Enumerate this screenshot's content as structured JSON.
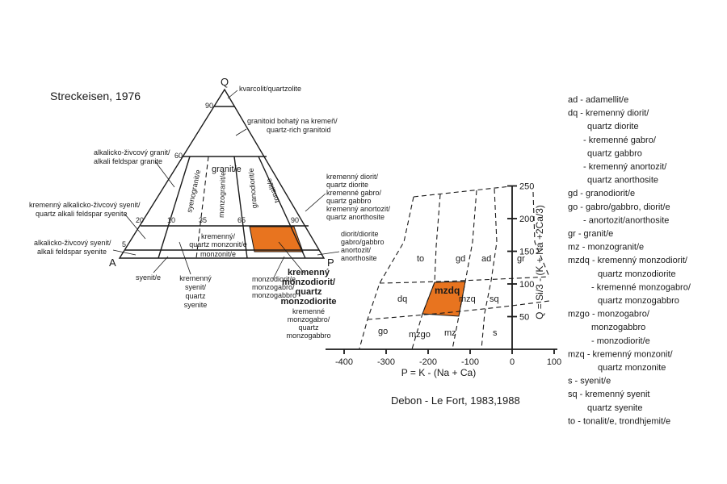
{
  "streckeisen": {
    "title": "Streckeisen, 1976",
    "vertices": {
      "q": "Q",
      "a": "A",
      "p": "P"
    },
    "tick_labels": {
      "q90": "90",
      "q60": "60",
      "q20": "20",
      "q5": "5",
      "p10": "10",
      "p35": "35",
      "p65": "65",
      "p90": "90"
    },
    "field_labels": {
      "granite": "granit/e",
      "syenogranite": "syenogranit/e",
      "monzogranite": "monzogranit/e",
      "granodiorite": "granodiorit/e",
      "tonalite": "tonalit/e",
      "qmonzonite_1": "kremenný/",
      "qmonzonite_2": "quartz monzonit/e",
      "monzonite": "monzonit/e"
    },
    "callouts": {
      "quartzolite": "kvarcolit/quartzolite",
      "qrich_1": "granitoid bohatý na kremeň/",
      "qrich_2": "quartz-rich granitoid",
      "akfg_1": "alkalicko-živcový granit/",
      "akfg_2": "alkali feldspar granite",
      "qakfs_1": "kremenný alkalicko-živcový syenit/",
      "qakfs_2": "quartz alkali feldspar syenite",
      "akfs_1": "alkalicko-živcový syenit/",
      "akfs_2": "alkali feldspar syenite",
      "syenite": "syenit/e",
      "qsyenite": [
        "kremenný",
        "syenit/",
        "quartz",
        "syenite"
      ],
      "qdiorite": [
        "kremenný diorit/",
        "quartz diorite",
        "kremenné gabro/",
        "quartz gabbro",
        "kremenný anortozit/",
        "quartz anorthosite"
      ],
      "diorite": [
        "diorit/diorite",
        "gabro/gabbro",
        "anortozit/",
        "anorthosite"
      ],
      "monzodiorite": [
        "monzodiorit/e",
        "monzogabro/",
        "monzogabbro"
      ],
      "qmonzodiorite_bold": [
        "kremenný",
        "monzodiorit/",
        "quartz",
        "monzodiorite"
      ],
      "qmonzodiorite_rest": [
        "kremenné",
        "monzogabro/",
        "quartz",
        "monzogabbro"
      ]
    }
  },
  "debon": {
    "title": "Debon - Le Fort, 1983,1988",
    "x_axis_label": "P = K - (Na + Ca)",
    "y_axis_label": "Q = Si/3 - (K + Na +2Ca/3)",
    "x_ticks": [
      {
        "value": -400,
        "label": "-400"
      },
      {
        "value": -300,
        "label": "-300"
      },
      {
        "value": -200,
        "label": "-200"
      },
      {
        "value": -100,
        "label": "-100"
      },
      {
        "value": 0,
        "label": "0"
      },
      {
        "value": 100,
        "label": "100"
      }
    ],
    "y_ticks": [
      {
        "value": 50,
        "label": "50"
      },
      {
        "value": 100,
        "label": "100"
      },
      {
        "value": 150,
        "label": "150"
      },
      {
        "value": 200,
        "label": "200"
      },
      {
        "value": 250,
        "label": "250"
      }
    ],
    "field_labels": {
      "to": "to",
      "gd": "gd",
      "ad": "ad",
      "gr": "gr",
      "dq": "dq",
      "mzdq": "mzdq",
      "mzq": "mzq",
      "sq": "sq",
      "go": "go",
      "mzgo": "mzgo",
      "mz": "mz",
      "s": "s"
    }
  },
  "legend": {
    "entries": [
      [
        "ad - adamellit/e"
      ],
      [
        "dq - kremenný diorit/",
        "quartz diorite",
        "- kremenné gabro/",
        "quartz gabbro",
        "- kremenný anortozit/",
        "quartz anorthosite"
      ],
      [
        "gd - granodiorit/e"
      ],
      [
        "go - gabro/gabbro, diorit/e",
        "- anortozit/anorthosite"
      ],
      [
        "gr - granit/e"
      ],
      [
        "mz - monzogranit/e"
      ],
      [
        "mzdq - kremenný monzodiorit/",
        "quartz monzodiorite",
        "- kremenné monzogabro/",
        "quartz monzogabbro"
      ],
      [
        "mzgo - monzogabro/",
        "monzogabbro",
        "- monzodiorit/e"
      ],
      [
        "mzq - kremenný monzonit/",
        "quartz monzonite"
      ],
      [
        "s - syenit/e"
      ],
      [
        "sq - kremenný syenit",
        "quartz syenite"
      ],
      [
        "to - tonalit/e, trondhjemit/e"
      ]
    ]
  },
  "colors": {
    "highlight": "#e8741f",
    "ink": "#1a1a1a"
  }
}
